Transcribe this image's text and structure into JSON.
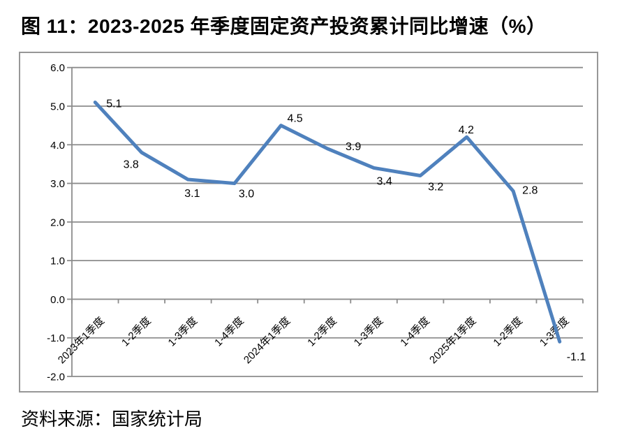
{
  "figure": {
    "title": "图 11：2023-2025 年季度固定资产投资累计同比增速（%）",
    "source": "资料来源：国家统计局"
  },
  "chart_data": {
    "type": "line",
    "title": "图 11：2023-2025 年季度固定资产投资累计同比增速（%）",
    "categories": [
      "2023年1季度",
      "1-2季度",
      "1-3季度",
      "1-4季度",
      "2024年1季度",
      "1-2季度",
      "1-3季度",
      "1-4季度",
      "2025年1季度",
      "1-2季度",
      "1-3季度"
    ],
    "values": [
      5.1,
      3.8,
      3.1,
      3.0,
      4.5,
      3.9,
      3.4,
      3.2,
      4.2,
      2.8,
      -1.1
    ],
    "data_labels": [
      "5.1",
      "3.8",
      "3.1",
      "3.0",
      "4.5",
      "3.9",
      "3.4",
      "3.2",
      "4.2",
      "2.8",
      "-1.1"
    ],
    "xlabel": "",
    "ylabel": "",
    "ylim": [
      -2.0,
      6.0
    ],
    "y_tick_step": 1.0,
    "y_tick_labels": [
      "6.0",
      "5.0",
      "4.0",
      "3.0",
      "2.0",
      "1.0",
      "0.0",
      "-1.0",
      "-2.0"
    ],
    "grid": true,
    "legend": false,
    "line_color": "#4F81BD",
    "grid_color": "#8C8C8C",
    "text_color": "#000000"
  }
}
